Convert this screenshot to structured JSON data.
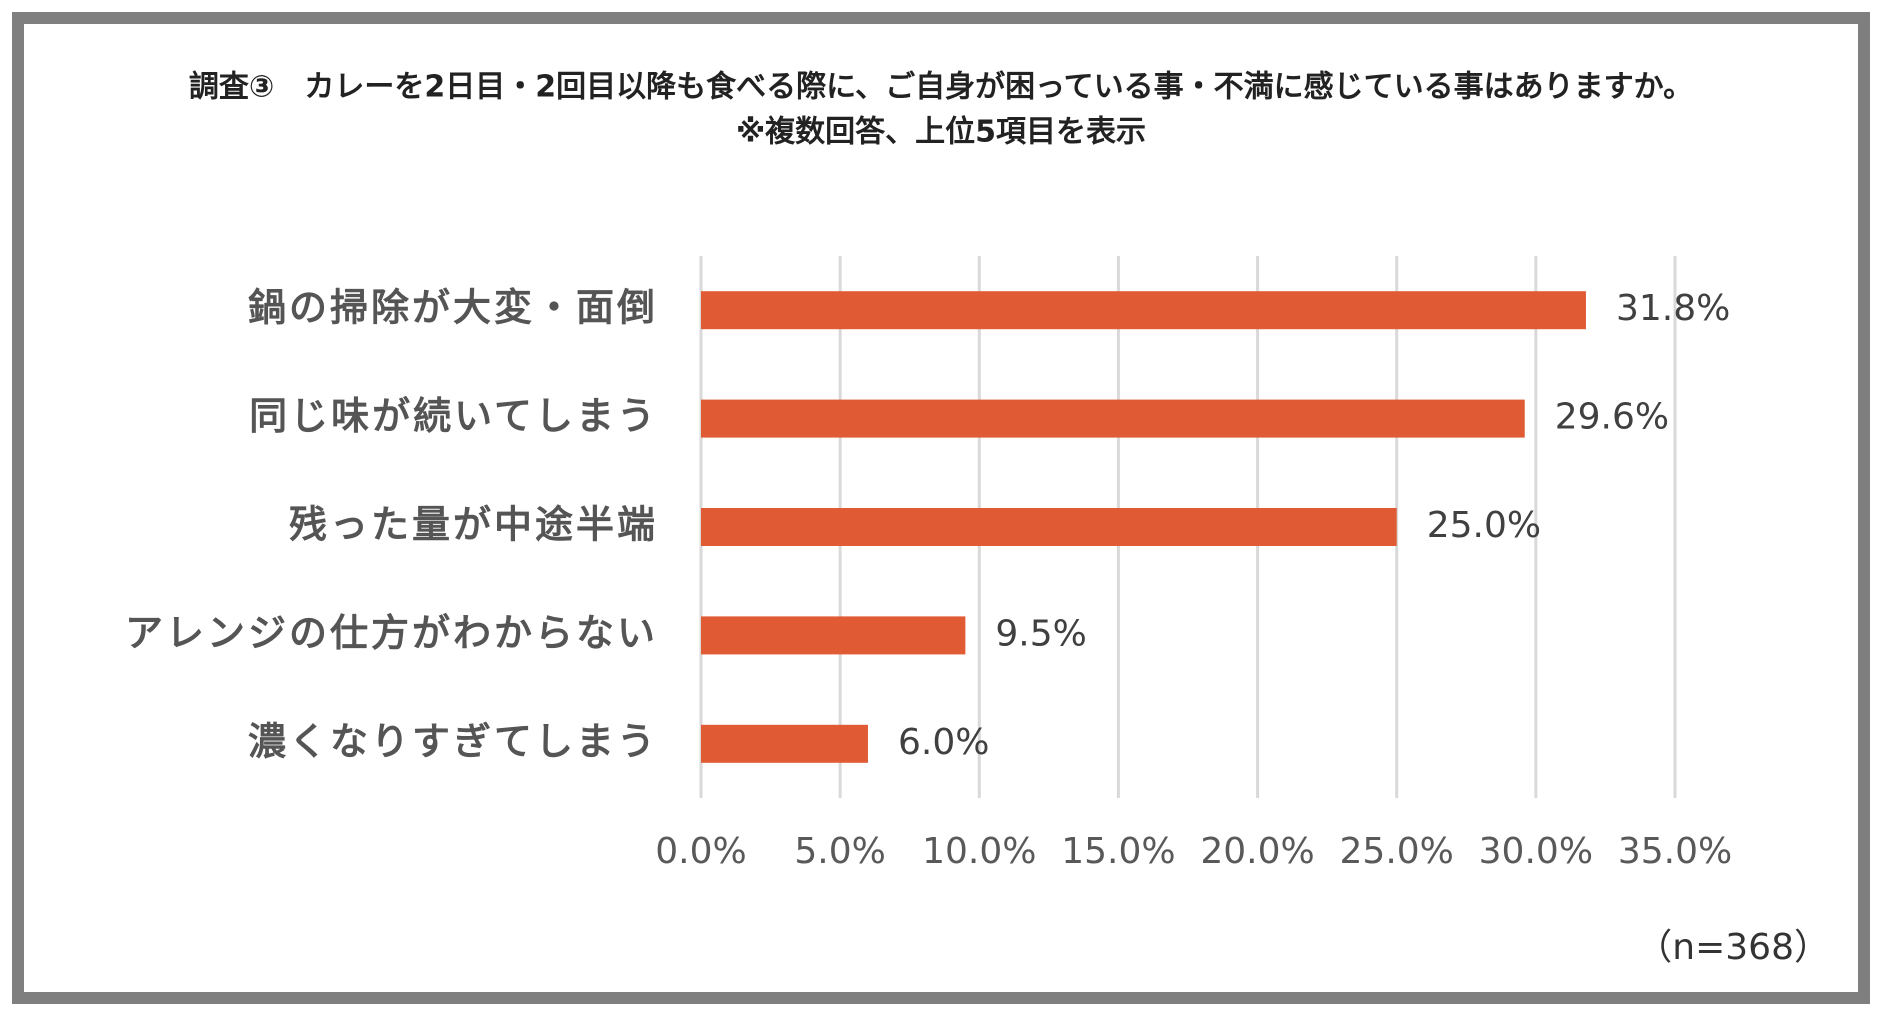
{
  "chart_data": {
    "type": "barh",
    "title": "調査③　カレーを2日目・2回目以降も食べる際に、ご自身が困っている事・不満に感じている事はありますか。",
    "subtitle": "※複数回答、上位5項目を表示",
    "categories": [
      "鍋の掃除が大変・面倒",
      "同じ味が続いてしまう",
      "残った量が中途半端",
      "アレンジの仕方がわからない",
      "濃くなりすぎてしまう"
    ],
    "values": [
      31.8,
      29.6,
      25.0,
      9.5,
      6.0
    ],
    "value_labels": [
      "31.8%",
      "29.6%",
      "25.0%",
      "9.5%",
      "6.0%"
    ],
    "color": "#e05a33",
    "xlim": [
      0,
      35
    ],
    "xticks": [
      {
        "value": 0,
        "label": "0.0%"
      },
      {
        "value": 5,
        "label": "5.0%"
      },
      {
        "value": 10,
        "label": "10.0%"
      },
      {
        "value": 15,
        "label": "15.0%"
      },
      {
        "value": 20,
        "label": "20.0%"
      },
      {
        "value": 25,
        "label": "25.0%"
      },
      {
        "value": 30,
        "label": "30.0%"
      },
      {
        "value": 35,
        "label": "35.0%"
      }
    ],
    "grid": true,
    "note": "（n=368）"
  }
}
